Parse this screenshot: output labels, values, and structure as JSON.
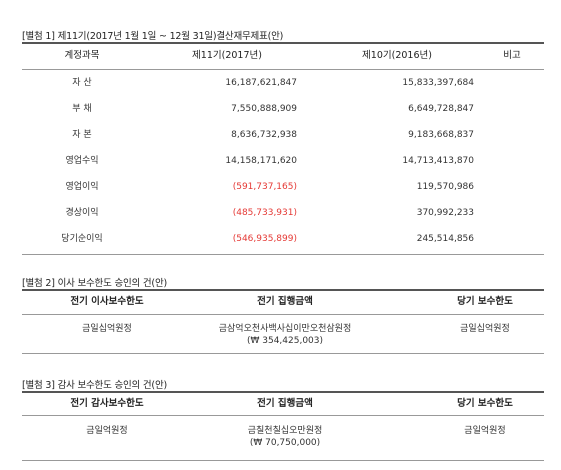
{
  "section1": {
    "title": "[별첨 1] 제11기(2017년 1월 1일 ~ 12월 31일)결산재무제표(안)",
    "headers": {
      "item": "계정과목",
      "cur": "제11기(2017년)",
      "prev": "제10기(2016년)",
      "note": "비고"
    },
    "rows": [
      {
        "item": "자 산",
        "cur": "16,187,621,847",
        "prev": "15,833,397,684",
        "neg": false
      },
      {
        "item": "부 채",
        "cur": "7,550,888,909",
        "prev": "6,649,728,847",
        "neg": false
      },
      {
        "item": "자 본",
        "cur": "8,636,732,938",
        "prev": "9,183,668,837",
        "neg": false
      },
      {
        "item": "영업수익",
        "cur": "14,158,171,620",
        "prev": "14,713,413,870",
        "neg": false
      },
      {
        "item": "영업이익",
        "cur": "(591,737,165)",
        "prev": "119,570,986",
        "neg": true
      },
      {
        "item": "경상이익",
        "cur": "(485,733,931)",
        "prev": "370,992,233",
        "neg": true
      },
      {
        "item": "당기순이익",
        "cur": "(546,935,899)",
        "prev": "245,514,856",
        "neg": true
      }
    ]
  },
  "section2": {
    "title": "[별첨 2] 이사 보수한도 승인의 건(안)",
    "headers": {
      "c1": "전기 이사보수한도",
      "c2": "전기 집행금액",
      "c3": "당기 보수한도"
    },
    "values": {
      "c1": "금일십억원정",
      "c2_line1": "금삼억오천사백사십이만오천삼원정",
      "c2_line2": "(₩ 354,425,003)",
      "c3": "금일십억원정"
    }
  },
  "section3": {
    "title": "[별첨 3] 감사 보수한도 승인의 건(안)",
    "headers": {
      "c1": "전기 감사보수한도",
      "c2": "전기 집행금액",
      "c3": "당기 보수한도"
    },
    "values": {
      "c1": "금일억원정",
      "c2_line1": "금칠천칠십오만원정",
      "c2_line2": "(₩ 70,750,000)",
      "c3": "금일억원정"
    }
  }
}
